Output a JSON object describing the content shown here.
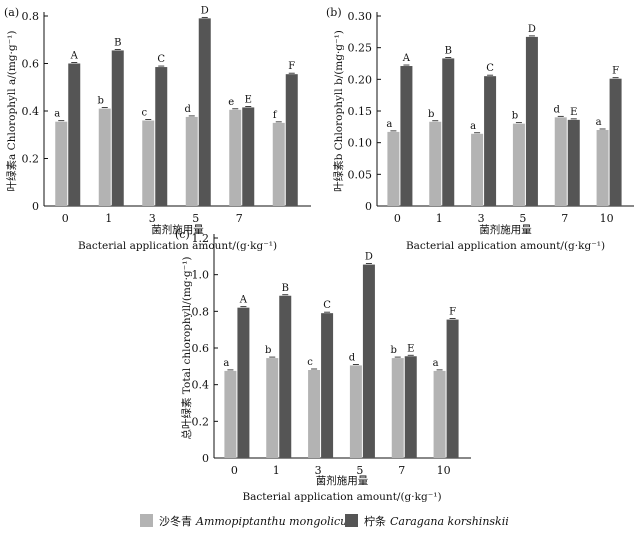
{
  "colors": {
    "series_a": "#b3b3b3",
    "series_b": "#555555",
    "axis": "#111111"
  },
  "chart_data": [
    {
      "type": "bar",
      "panel": "(a)",
      "ylabel": "叶绿素a Chlorophyll a/(mg·g⁻¹)",
      "xlabel_cn": "菌剂施用量",
      "xlabel_en": "Bacterial application amount/(g·kg⁻¹)",
      "categories": [
        "0",
        "1",
        "3",
        "5",
        "7",
        ""
      ],
      "ylim": [
        0,
        0.8
      ],
      "yticks": [
        "0",
        "0.2",
        "0.4",
        "0.6",
        "0.8"
      ],
      "series": [
        {
          "name": "沙冬青 Ammopiptanthu mongolicus",
          "values": [
            0.355,
            0.41,
            0.36,
            0.375,
            0.405,
            0.35
          ],
          "labels": [
            "a",
            "b",
            "c",
            "d",
            "e",
            "f"
          ]
        },
        {
          "name": "柠条 Caragana korshinskii",
          "values": [
            0.6,
            0.655,
            0.585,
            0.79,
            0.415,
            0.555
          ],
          "labels": [
            "A",
            "B",
            "C",
            "D",
            "E",
            "F"
          ]
        }
      ]
    },
    {
      "type": "bar",
      "panel": "(b)",
      "ylabel": "叶绿素b Chlorophyll b/(mg·g⁻¹)",
      "xlabel_cn": "菌剂施用量",
      "xlabel_en": "Bacterial application amount/(g·kg⁻¹)",
      "categories": [
        "0",
        "1",
        "3",
        "5",
        "7",
        "10"
      ],
      "ylim": [
        0,
        0.3
      ],
      "yticks": [
        "0",
        "0.05",
        "0.10",
        "0.15",
        "0.20",
        "0.25",
        "0.30"
      ],
      "series": [
        {
          "name": "沙冬青 Ammopiptanthu mongolicus",
          "values": [
            0.117,
            0.133,
            0.114,
            0.13,
            0.14,
            0.12
          ],
          "labels": [
            "a",
            "b",
            "a",
            "b",
            "d",
            "a"
          ]
        },
        {
          "name": "柠条 Caragana korshinskii",
          "values": [
            0.221,
            0.233,
            0.205,
            0.267,
            0.136,
            0.201
          ],
          "labels": [
            "A",
            "B",
            "C",
            "D",
            "E",
            "F"
          ]
        }
      ]
    },
    {
      "type": "bar",
      "panel": "(c)",
      "ylabel": "总叶绿素 Total chlorophyll/(mg·g⁻¹)",
      "xlabel_cn": "菌剂施用量",
      "xlabel_en": "Bacterial application amount/(g·kg⁻¹)",
      "categories": [
        "0",
        "1",
        "3",
        "5",
        "7",
        "10"
      ],
      "ylim": [
        0,
        1.2
      ],
      "yticks": [
        "0",
        "0.2",
        "0.4",
        "0.6",
        "0.8",
        "1.0",
        "1.2"
      ],
      "series": [
        {
          "name": "沙冬青 Ammopiptanthu mongolicus",
          "values": [
            0.475,
            0.545,
            0.48,
            0.505,
            0.545,
            0.475
          ],
          "labels": [
            "a",
            "b",
            "c",
            "d",
            "b",
            "a"
          ]
        },
        {
          "name": "柠条 Caragana korshinskii",
          "values": [
            0.82,
            0.885,
            0.79,
            1.055,
            0.555,
            0.755
          ],
          "labels": [
            "A",
            "B",
            "C",
            "D",
            "E",
            "F"
          ]
        }
      ]
    }
  ],
  "legend": [
    {
      "cn": "沙冬青",
      "latin": "Ammopiptanthu mongolicus"
    },
    {
      "cn": "柠条",
      "latin": "Caragana korshinskii"
    }
  ]
}
